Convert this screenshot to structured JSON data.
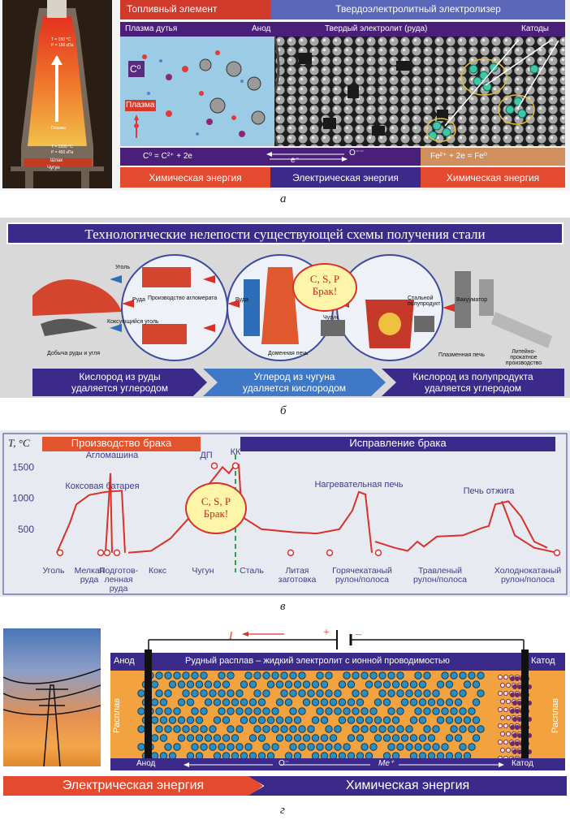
{
  "panel_a": {
    "letter": "а",
    "fuel_element": "Топливный элемент",
    "solid_electrolyzer": "Твердоэлектролитный электролизер",
    "blast_plasma": "Плазма дутья",
    "anode": "Анод",
    "solid_electrolyte": "Твердый электролит (руда)",
    "cathodes": "Катоды",
    "c0_label": "C⁰",
    "plasma_label": "Плазма",
    "eq_left": "C⁰ = C²⁺ + 2e",
    "o_label": "O⁻⁻",
    "e_label": "e⁻",
    "eq_right": "Fe²⁺ + 2e = Fe⁰",
    "chem_energy_left": "Химическая энергия",
    "electric_energy": "Электрическая энергия",
    "chem_energy_right": "Химическая энергия",
    "furnace_temp_top": "T = 150 °C",
    "furnace_temp_top2": "P = 150 кПа",
    "furnace_plasma": "Плазма",
    "furnace_slag": "Шлак",
    "furnace_iron": "Чугун",
    "furnace_temp_mid": "T = 2200 °C",
    "furnace_pressure_mid": "P = 450 кПа"
  },
  "panel_b": {
    "letter": "б",
    "title": "Технологические нелепости существующей схемы получения стали",
    "coal": "Уголь",
    "ore": "Руда",
    "agglomerate": "Производство агломерата",
    "ore2": "Руда",
    "coking_coal": "Коксующийся уголь",
    "mining": "Добыча руды и угля",
    "blast_furnace": "Доменная печь",
    "pig_iron": "Чугун",
    "bubble_line1": "C, S, P",
    "bubble_line2": "Брак!",
    "steel_semi": "Стальной полупродукт",
    "vacuumator": "Вакууматор",
    "plasma_furnace": "Плазменная печь",
    "casting_rolling": "Литейно-прокатное производство",
    "bottom_1_l1": "Кислород из руды",
    "bottom_1_l2": "удаляется углеродом",
    "bottom_2_l1": "Углерод из чугуна",
    "bottom_2_l2": "удаляется кислородом",
    "bottom_3_l1": "Кислород из полупродукта",
    "bottom_3_l2": "удаляется углеродом"
  },
  "panel_c": {
    "letter": "в",
    "head_left": "Производство брака",
    "head_right": "Исправление брака",
    "bubble_line1": "C, S, P",
    "bubble_line2": "Брак!"
  },
  "chart_data": {
    "type": "line",
    "ylabel": "T, °C",
    "yticks": [
      "1500",
      "1000",
      "500"
    ],
    "ylim": [
      0,
      1700
    ],
    "xlabels": [
      [
        "Уголь"
      ],
      [
        "Мелкая",
        "руда"
      ],
      [
        "Подготов-",
        "ленная",
        "руда"
      ],
      [
        "Кокс"
      ],
      [
        "Чугун"
      ],
      [
        "Сталь"
      ],
      [
        "Литая",
        "заготовка"
      ],
      [
        "Горячекатаный",
        "рулон/полоса"
      ],
      [
        "Травленый",
        "рулон/полоса"
      ],
      [
        "Холоднокатаный",
        "рулон/полоса"
      ]
    ],
    "annotations": [
      "Коксовая батарея",
      "Агломашина",
      "ДП",
      "КК",
      "Нагревательная печь",
      "Печь отжига"
    ],
    "series": [
      {
        "points": [
          [
            0.5,
            120
          ],
          [
            0.9,
            600
          ],
          [
            1.1,
            900
          ],
          [
            1.5,
            1050
          ],
          [
            2.0,
            1100
          ],
          [
            2.5,
            1120
          ],
          [
            2.6,
            120
          ]
        ]
      },
      {
        "points": [
          [
            2.0,
            120
          ],
          [
            2.15,
            1400
          ],
          [
            2.2,
            120
          ]
        ]
      },
      {
        "points": [
          [
            2.7,
            120
          ],
          [
            3.4,
            150
          ],
          [
            4.0,
            350
          ],
          [
            4.6,
            700
          ],
          [
            5.0,
            1100
          ],
          [
            5.3,
            1300
          ],
          [
            5.6,
            1500
          ],
          [
            5.8,
            1400
          ],
          [
            6.0,
            1550
          ]
        ]
      },
      {
        "points": [
          [
            6.1,
            1550
          ],
          [
            6.2,
            700
          ],
          [
            6.8,
            500
          ],
          [
            7.8,
            450
          ],
          [
            8.5,
            430
          ],
          [
            9.2,
            500
          ],
          [
            9.6,
            800
          ],
          [
            9.8,
            1100
          ],
          [
            10.0,
            1060
          ],
          [
            10.2,
            120
          ]
        ]
      },
      {
        "points": [
          [
            10.3,
            300
          ],
          [
            10.9,
            200
          ],
          [
            11.3,
            150
          ],
          [
            11.6,
            300
          ],
          [
            11.8,
            220
          ],
          [
            12.2,
            380
          ],
          [
            13.0,
            400
          ],
          [
            13.6,
            520
          ],
          [
            13.8,
            550
          ],
          [
            14.0,
            900
          ],
          [
            14.4,
            950
          ],
          [
            14.8,
            700
          ],
          [
            15.2,
            300
          ],
          [
            15.6,
            200
          ]
        ]
      },
      {
        "points": [
          [
            14.2,
            950
          ],
          [
            14.6,
            400
          ],
          [
            15.2,
            200
          ],
          [
            15.9,
            120
          ]
        ]
      }
    ]
  },
  "panel_d": {
    "letter": "г",
    "current_label": "I",
    "plus": "+",
    "minus": "–",
    "anode": "Анод",
    "title": "Рудный расплав – жидкий электролит с ионной проводимостью",
    "cathode": "Катод",
    "melt_left": "Расплав",
    "melt_right": "Расплав",
    "anode_bottom": "Анод",
    "o_ion": "O⁻",
    "me_ion": "Me⁺",
    "cathode_bottom": "Катод",
    "electric_energy": "Электрическая энергия",
    "chemical_energy": "Химическая энергия"
  }
}
